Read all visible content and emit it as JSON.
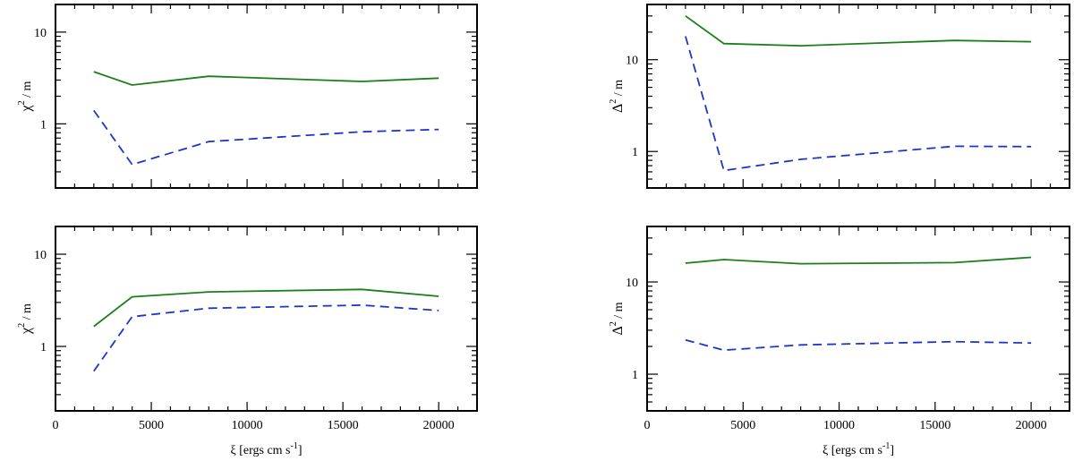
{
  "chart_data": [
    {
      "id": "top-left",
      "type": "line",
      "ylabel": "χ² / m",
      "ylabel_parts": {
        "base": "χ",
        "sup": "2",
        "rest": " / m"
      },
      "yscale": "log",
      "ylim": [
        0.2,
        20
      ],
      "xlim": [
        0,
        22000
      ],
      "x_ticks": [
        0,
        5000,
        10000,
        15000,
        20000
      ],
      "x_tick_labels": [
        "",
        "",
        "",
        "",
        ""
      ],
      "y_ticks": [
        1,
        10
      ],
      "y_tick_labels": [
        "1",
        "10"
      ],
      "xlabel": "",
      "series": [
        {
          "name": "solid",
          "color": "#1a7f1a",
          "dash": "",
          "x": [
            2000,
            4000,
            8000,
            16000,
            20000
          ],
          "values": [
            3.7,
            2.65,
            3.3,
            2.9,
            3.15
          ]
        },
        {
          "name": "dashed",
          "color": "#1f35c8",
          "dash": "10,6",
          "x": [
            2000,
            4000,
            8000,
            16000,
            20000
          ],
          "values": [
            1.4,
            0.36,
            0.64,
            0.82,
            0.87
          ]
        }
      ]
    },
    {
      "id": "top-right",
      "type": "line",
      "ylabel": "Δ² / m",
      "ylabel_parts": {
        "base": "Δ",
        "sup": "2",
        "rest": " / m"
      },
      "yscale": "log",
      "ylim": [
        0.4,
        40
      ],
      "xlim": [
        0,
        22000
      ],
      "x_ticks": [
        0,
        5000,
        10000,
        15000,
        20000
      ],
      "x_tick_labels": [
        "",
        "",
        "",
        "",
        ""
      ],
      "y_ticks": [
        1,
        10
      ],
      "y_tick_labels": [
        "1",
        "10"
      ],
      "xlabel": "",
      "series": [
        {
          "name": "solid",
          "color": "#1a7f1a",
          "dash": "",
          "x": [
            2000,
            4000,
            8000,
            16000,
            20000
          ],
          "values": [
            30,
            15,
            14.2,
            16.2,
            15.7
          ]
        },
        {
          "name": "dashed",
          "color": "#1f35c8",
          "dash": "10,6",
          "x": [
            2000,
            4000,
            8000,
            16000,
            20000
          ],
          "values": [
            18,
            0.62,
            0.82,
            1.14,
            1.13
          ]
        }
      ]
    },
    {
      "id": "bottom-left",
      "type": "line",
      "ylabel": "χ² / m",
      "ylabel_parts": {
        "base": "χ",
        "sup": "2",
        "rest": " / m"
      },
      "yscale": "log",
      "ylim": [
        0.2,
        20
      ],
      "xlim": [
        0,
        22000
      ],
      "x_ticks": [
        0,
        5000,
        10000,
        15000,
        20000
      ],
      "x_tick_labels": [
        "0",
        "5000",
        "10000",
        "15000",
        "20000"
      ],
      "y_ticks": [
        1,
        10
      ],
      "y_tick_labels": [
        "1",
        "10"
      ],
      "xlabel": "ξ [ergs cm s⁻¹]",
      "xlabel_parts": {
        "base": "ξ [ergs cm s",
        "sup": "-1",
        "rest": "]"
      },
      "series": [
        {
          "name": "solid",
          "color": "#1a7f1a",
          "dash": "",
          "x": [
            2000,
            4000,
            8000,
            16000,
            20000
          ],
          "values": [
            1.65,
            3.45,
            3.9,
            4.15,
            3.5
          ]
        },
        {
          "name": "dashed",
          "color": "#1f35c8",
          "dash": "10,6",
          "x": [
            2000,
            4000,
            8000,
            16000,
            20000
          ],
          "values": [
            0.54,
            2.1,
            2.6,
            2.8,
            2.45
          ]
        }
      ]
    },
    {
      "id": "bottom-right",
      "type": "line",
      "ylabel": "Δ² / m",
      "ylabel_parts": {
        "base": "Δ",
        "sup": "2",
        "rest": " / m"
      },
      "yscale": "log",
      "ylim": [
        0.4,
        40
      ],
      "xlim": [
        0,
        22000
      ],
      "x_ticks": [
        0,
        5000,
        10000,
        15000,
        20000
      ],
      "x_tick_labels": [
        "0",
        "5000",
        "10000",
        "15000",
        "20000"
      ],
      "y_ticks": [
        1,
        10
      ],
      "y_tick_labels": [
        "1",
        "10"
      ],
      "xlabel": "ξ [ergs cm s⁻¹]",
      "xlabel_parts": {
        "base": "ξ [ergs cm s",
        "sup": "-1",
        "rest": "]"
      },
      "series": [
        {
          "name": "solid",
          "color": "#1a7f1a",
          "dash": "",
          "x": [
            2000,
            4000,
            8000,
            16000,
            20000
          ],
          "values": [
            16,
            17.5,
            15.8,
            16.2,
            18.5
          ]
        },
        {
          "name": "dashed",
          "color": "#1f35c8",
          "dash": "10,6",
          "x": [
            2000,
            4000,
            8000,
            16000,
            20000
          ],
          "values": [
            2.35,
            1.82,
            2.08,
            2.25,
            2.18
          ]
        }
      ]
    }
  ]
}
